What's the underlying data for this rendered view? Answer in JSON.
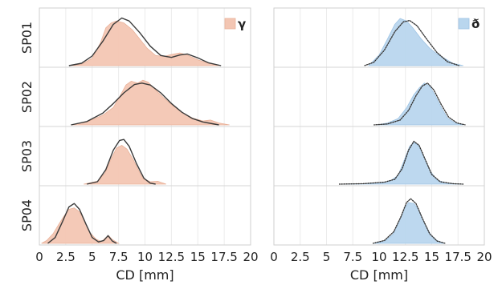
{
  "chart_data": {
    "type": "area",
    "rows": [
      "SP01",
      "SP02",
      "SP03",
      "SP04"
    ],
    "xlim": [
      0,
      20
    ],
    "xticks": [
      "0",
      "2.5",
      "5",
      "7.5",
      "10",
      "12.5",
      "15",
      "17.5",
      "20"
    ],
    "xtick_values": [
      0,
      2.5,
      5,
      7.5,
      10,
      12.5,
      15,
      17.5,
      20
    ],
    "grid": true,
    "panels": [
      {
        "xlabel": "CD [mm]",
        "legend": "γ",
        "legend_position": "top-right",
        "fill_color": "#f3c6b3",
        "fill_stroke": "#e9b29a",
        "fit_style": "solid",
        "series": [
          {
            "row": "SP01",
            "empirical_density": [
              [
                3.0,
                0.0
              ],
              [
                4.0,
                0.03
              ],
              [
                5.0,
                0.15
              ],
              [
                5.8,
                0.48
              ],
              [
                6.3,
                0.78
              ],
              [
                6.8,
                0.88
              ],
              [
                7.3,
                0.92
              ],
              [
                8.0,
                0.88
              ],
              [
                8.8,
                0.74
              ],
              [
                9.5,
                0.55
              ],
              [
                10.2,
                0.36
              ],
              [
                11.0,
                0.21
              ],
              [
                11.8,
                0.19
              ],
              [
                12.5,
                0.23
              ],
              [
                13.3,
                0.26
              ],
              [
                14.0,
                0.22
              ],
              [
                15.0,
                0.12
              ],
              [
                16.0,
                0.05
              ],
              [
                17.0,
                0.0
              ]
            ],
            "fit_density": [
              [
                2.8,
                0.0
              ],
              [
                4.0,
                0.05
              ],
              [
                5.0,
                0.2
              ],
              [
                6.0,
                0.5
              ],
              [
                7.0,
                0.85
              ],
              [
                7.8,
                0.98
              ],
              [
                8.5,
                0.92
              ],
              [
                9.5,
                0.68
              ],
              [
                10.5,
                0.4
              ],
              [
                11.5,
                0.21
              ],
              [
                12.5,
                0.17
              ],
              [
                13.3,
                0.22
              ],
              [
                14.0,
                0.24
              ],
              [
                15.0,
                0.16
              ],
              [
                16.0,
                0.06
              ],
              [
                17.2,
                0.0
              ]
            ]
          },
          {
            "row": "SP02",
            "empirical_density": [
              [
                3.0,
                0.0
              ],
              [
                4.5,
                0.06
              ],
              [
                6.0,
                0.2
              ],
              [
                7.0,
                0.36
              ],
              [
                7.6,
                0.58
              ],
              [
                8.2,
                0.82
              ],
              [
                8.7,
                0.9
              ],
              [
                9.3,
                0.86
              ],
              [
                9.8,
                0.92
              ],
              [
                10.3,
                0.88
              ],
              [
                11.0,
                0.72
              ],
              [
                11.8,
                0.55
              ],
              [
                12.5,
                0.42
              ],
              [
                13.5,
                0.26
              ],
              [
                14.5,
                0.14
              ],
              [
                15.5,
                0.08
              ],
              [
                16.2,
                0.1
              ],
              [
                17.0,
                0.04
              ],
              [
                18.0,
                0.0
              ]
            ],
            "fit_density": [
              [
                3.0,
                0.0
              ],
              [
                4.5,
                0.07
              ],
              [
                6.0,
                0.24
              ],
              [
                7.0,
                0.44
              ],
              [
                8.0,
                0.66
              ],
              [
                9.0,
                0.83
              ],
              [
                9.7,
                0.86
              ],
              [
                10.5,
                0.82
              ],
              [
                11.5,
                0.66
              ],
              [
                12.5,
                0.44
              ],
              [
                13.5,
                0.26
              ],
              [
                14.5,
                0.13
              ],
              [
                15.5,
                0.06
              ],
              [
                17.0,
                0.0
              ]
            ]
          },
          {
            "row": "SP03",
            "empirical_density": [
              [
                4.2,
                0.0
              ],
              [
                5.5,
                0.06
              ],
              [
                6.2,
                0.22
              ],
              [
                6.8,
                0.52
              ],
              [
                7.3,
                0.74
              ],
              [
                7.8,
                0.8
              ],
              [
                8.3,
                0.72
              ],
              [
                8.9,
                0.5
              ],
              [
                9.3,
                0.32
              ],
              [
                9.8,
                0.12
              ],
              [
                10.5,
                0.05
              ],
              [
                11.2,
                0.06
              ],
              [
                12.0,
                0.0
              ]
            ],
            "fit_density": [
              [
                4.5,
                0.0
              ],
              [
                5.5,
                0.05
              ],
              [
                6.3,
                0.3
              ],
              [
                7.0,
                0.7
              ],
              [
                7.6,
                0.9
              ],
              [
                8.0,
                0.92
              ],
              [
                8.5,
                0.78
              ],
              [
                9.2,
                0.42
              ],
              [
                9.9,
                0.12
              ],
              [
                10.5,
                0.02
              ],
              [
                11.0,
                0.0
              ]
            ]
          },
          {
            "row": "SP04",
            "empirical_density": [
              [
                0.2,
                0.0
              ],
              [
                0.7,
                0.06
              ],
              [
                1.3,
                0.2
              ],
              [
                1.8,
                0.38
              ],
              [
                2.3,
                0.55
              ],
              [
                2.8,
                0.7
              ],
              [
                3.3,
                0.73
              ],
              [
                3.8,
                0.65
              ],
              [
                4.3,
                0.45
              ],
              [
                4.8,
                0.22
              ],
              [
                5.4,
                0.08
              ],
              [
                5.9,
                0.04
              ],
              [
                6.3,
                0.12
              ],
              [
                6.6,
                0.15
              ],
              [
                6.9,
                0.08
              ],
              [
                7.5,
                0.0
              ]
            ],
            "fit_density": [
              [
                0.8,
                0.0
              ],
              [
                1.5,
                0.12
              ],
              [
                2.2,
                0.45
              ],
              [
                2.8,
                0.75
              ],
              [
                3.3,
                0.82
              ],
              [
                3.8,
                0.7
              ],
              [
                4.4,
                0.4
              ],
              [
                5.0,
                0.12
              ],
              [
                5.6,
                0.03
              ],
              [
                6.1,
                0.06
              ],
              [
                6.5,
                0.16
              ],
              [
                6.9,
                0.05
              ],
              [
                7.3,
                0.0
              ]
            ]
          }
        ]
      },
      {
        "xlabel": "CD [mm]",
        "legend": "ð",
        "legend_position": "top-right",
        "fill_color": "#b9d6ee",
        "fill_stroke": "#9fc4e4",
        "fit_style": "solid-dotted",
        "series": [
          {
            "row": "SP01",
            "empirical_density": [
              [
                9.0,
                0.0
              ],
              [
                10.0,
                0.22
              ],
              [
                10.8,
                0.55
              ],
              [
                11.5,
                0.85
              ],
              [
                12.0,
                0.97
              ],
              [
                12.6,
                0.92
              ],
              [
                13.2,
                0.78
              ],
              [
                14.0,
                0.55
              ],
              [
                14.8,
                0.36
              ],
              [
                15.5,
                0.24
              ],
              [
                16.3,
                0.14
              ],
              [
                17.0,
                0.05
              ],
              [
                18.0,
                0.0
              ]
            ],
            "fit_density": [
              [
                8.6,
                0.0
              ],
              [
                9.5,
                0.07
              ],
              [
                10.5,
                0.32
              ],
              [
                11.5,
                0.7
              ],
              [
                12.3,
                0.9
              ],
              [
                12.9,
                0.93
              ],
              [
                13.6,
                0.82
              ],
              [
                14.5,
                0.55
              ],
              [
                15.5,
                0.27
              ],
              [
                16.5,
                0.08
              ],
              [
                17.6,
                0.0
              ]
            ]
          },
          {
            "row": "SP02",
            "empirical_density": [
              [
                9.8,
                0.0
              ],
              [
                10.8,
                0.04
              ],
              [
                11.8,
                0.13
              ],
              [
                12.6,
                0.35
              ],
              [
                13.3,
                0.62
              ],
              [
                13.8,
                0.76
              ],
              [
                14.3,
                0.86
              ],
              [
                14.8,
                0.8
              ],
              [
                15.3,
                0.62
              ],
              [
                15.9,
                0.36
              ],
              [
                16.5,
                0.14
              ],
              [
                17.2,
                0.04
              ],
              [
                18.0,
                0.0
              ]
            ],
            "fit_density": [
              [
                9.5,
                0.0
              ],
              [
                10.8,
                0.02
              ],
              [
                12.0,
                0.1
              ],
              [
                12.8,
                0.3
              ],
              [
                13.5,
                0.6
              ],
              [
                14.1,
                0.8
              ],
              [
                14.6,
                0.86
              ],
              [
                15.2,
                0.72
              ],
              [
                15.9,
                0.42
              ],
              [
                16.6,
                0.16
              ],
              [
                17.4,
                0.04
              ],
              [
                18.2,
                0.0
              ]
            ]
          },
          {
            "row": "SP03",
            "empirical_density": [
              [
                6.5,
                0.0
              ],
              [
                8.5,
                0.01
              ],
              [
                10.0,
                0.03
              ],
              [
                11.0,
                0.06
              ],
              [
                11.8,
                0.18
              ],
              [
                12.4,
                0.5
              ],
              [
                12.9,
                0.78
              ],
              [
                13.3,
                0.86
              ],
              [
                13.8,
                0.78
              ],
              [
                14.3,
                0.55
              ],
              [
                14.9,
                0.26
              ],
              [
                15.5,
                0.08
              ],
              [
                16.5,
                0.02
              ],
              [
                18.0,
                0.0
              ]
            ],
            "fit_density": [
              [
                6.2,
                0.0
              ],
              [
                8.5,
                0.01
              ],
              [
                10.5,
                0.04
              ],
              [
                11.5,
                0.1
              ],
              [
                12.2,
                0.32
              ],
              [
                12.8,
                0.7
              ],
              [
                13.3,
                0.88
              ],
              [
                13.8,
                0.8
              ],
              [
                14.4,
                0.5
              ],
              [
                15.0,
                0.2
              ],
              [
                15.8,
                0.05
              ],
              [
                17.0,
                0.01
              ],
              [
                18.0,
                0.0
              ]
            ]
          },
          {
            "row": "SP04",
            "empirical_density": [
              [
                9.5,
                0.0
              ],
              [
                10.5,
                0.04
              ],
              [
                11.3,
                0.18
              ],
              [
                11.9,
                0.46
              ],
              [
                12.4,
                0.72
              ],
              [
                12.8,
                0.84
              ],
              [
                13.3,
                0.82
              ],
              [
                13.8,
                0.68
              ],
              [
                14.3,
                0.42
              ],
              [
                14.9,
                0.18
              ],
              [
                15.5,
                0.06
              ],
              [
                16.2,
                0.0
              ]
            ],
            "fit_density": [
              [
                9.4,
                0.0
              ],
              [
                10.5,
                0.06
              ],
              [
                11.4,
                0.24
              ],
              [
                12.1,
                0.56
              ],
              [
                12.6,
                0.84
              ],
              [
                13.0,
                0.92
              ],
              [
                13.5,
                0.82
              ],
              [
                14.1,
                0.52
              ],
              [
                14.8,
                0.2
              ],
              [
                15.5,
                0.05
              ],
              [
                16.3,
                0.0
              ]
            ]
          }
        ]
      }
    ]
  }
}
